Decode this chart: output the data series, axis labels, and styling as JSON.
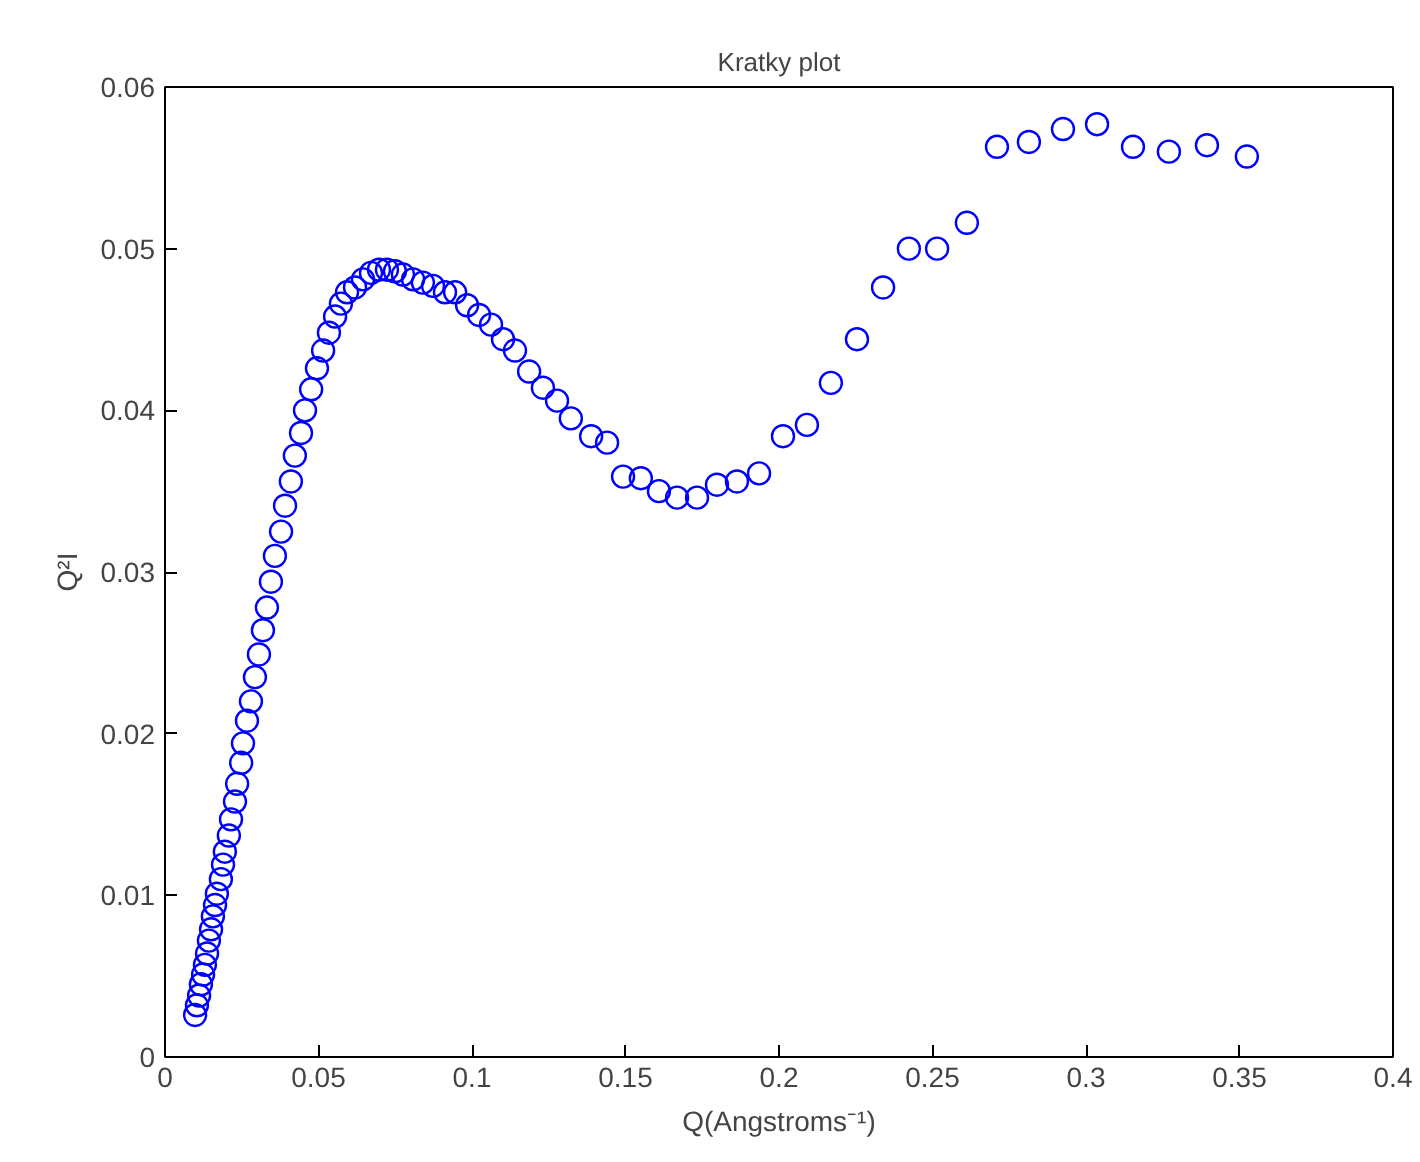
{
  "chart_data": {
    "type": "scatter",
    "title": "Kratky plot",
    "xlabel": "Q(Angstroms⁻¹)",
    "ylabel": "Q²I",
    "marker": "circle",
    "grid": false,
    "xlim": [
      0,
      0.4
    ],
    "ylim": [
      0,
      0.06
    ],
    "xticks": [
      0,
      0.05,
      0.1,
      0.15,
      0.2,
      0.25,
      0.3,
      0.35,
      0.4
    ],
    "yticks": [
      0,
      0.01,
      0.02,
      0.03,
      0.04,
      0.05,
      0.06
    ],
    "series": [
      {
        "color": "#0000ff",
        "x": [
          0.0098,
          0.0104,
          0.0111,
          0.0117,
          0.0124,
          0.013,
          0.0137,
          0.0143,
          0.015,
          0.0156,
          0.0163,
          0.0169,
          0.0182,
          0.0189,
          0.0195,
          0.0208,
          0.0215,
          0.0228,
          0.0235,
          0.0248,
          0.0254,
          0.0267,
          0.028,
          0.0293,
          0.0306,
          0.0319,
          0.0332,
          0.0345,
          0.0358,
          0.0378,
          0.0391,
          0.041,
          0.0423,
          0.0443,
          0.0456,
          0.0476,
          0.0495,
          0.0515,
          0.0534,
          0.0554,
          0.0573,
          0.0593,
          0.0619,
          0.0645,
          0.0671,
          0.0697,
          0.0723,
          0.0749,
          0.0775,
          0.0808,
          0.084,
          0.0873,
          0.0912,
          0.0945,
          0.0984,
          0.1023,
          0.1062,
          0.1101,
          0.114,
          0.1186,
          0.1231,
          0.1277,
          0.1322,
          0.1388,
          0.144,
          0.1492,
          0.155,
          0.1609,
          0.1668,
          0.1733,
          0.1798,
          0.1863,
          0.1935,
          0.2013,
          0.2091,
          0.2169,
          0.2254,
          0.2339,
          0.2423,
          0.2515,
          0.2612,
          0.271,
          0.2814,
          0.2925,
          0.3036,
          0.3153,
          0.327,
          0.3394,
          0.3524
        ],
        "values": [
          0.0026,
          0.0032,
          0.0038,
          0.0045,
          0.0051,
          0.0057,
          0.0064,
          0.0072,
          0.0079,
          0.0087,
          0.0094,
          0.0101,
          0.011,
          0.0119,
          0.0127,
          0.0137,
          0.0147,
          0.0158,
          0.0169,
          0.0182,
          0.0194,
          0.0208,
          0.022,
          0.0235,
          0.0249,
          0.0264,
          0.0278,
          0.0294,
          0.031,
          0.0325,
          0.0341,
          0.0356,
          0.0372,
          0.0386,
          0.04,
          0.0413,
          0.0426,
          0.0437,
          0.0448,
          0.0458,
          0.0466,
          0.0473,
          0.0476,
          0.0481,
          0.0485,
          0.0487,
          0.0487,
          0.0486,
          0.0484,
          0.0481,
          0.0479,
          0.0477,
          0.0473,
          0.0473,
          0.0465,
          0.0459,
          0.0453,
          0.0444,
          0.0437,
          0.0424,
          0.0414,
          0.0406,
          0.0395,
          0.0384,
          0.038,
          0.0359,
          0.0358,
          0.035,
          0.0346,
          0.0346,
          0.0354,
          0.0356,
          0.0361,
          0.0384,
          0.0391,
          0.0417,
          0.0444,
          0.0476,
          0.05,
          0.05,
          0.0516,
          0.0563,
          0.0566,
          0.0574,
          0.0577,
          0.0563,
          0.056,
          0.0564,
          0.0557
        ]
      }
    ]
  }
}
